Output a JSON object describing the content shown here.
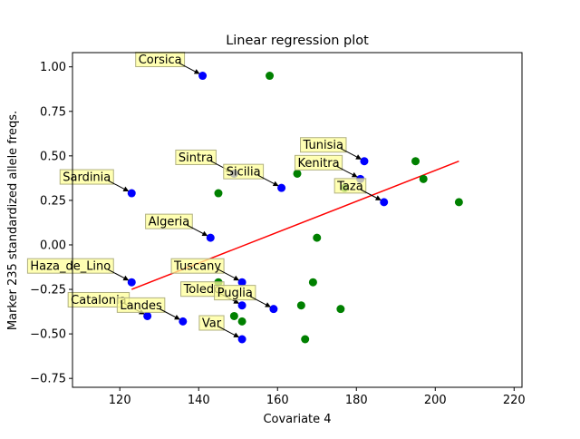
{
  "chart_data": {
    "type": "scatter",
    "title": "Linear regression plot",
    "xlabel": "Covariate 4",
    "ylabel": "Marker 235 standardized allele freqs.",
    "xlim": [
      108,
      222
    ],
    "ylim": [
      -0.8,
      1.08
    ],
    "xticks": [
      120,
      140,
      160,
      180,
      200,
      220
    ],
    "yticks": [
      -0.75,
      -0.5,
      -0.25,
      0.0,
      0.25,
      0.5,
      0.75,
      1.0
    ],
    "xtick_labels": [
      "120",
      "140",
      "160",
      "180",
      "200",
      "220"
    ],
    "ytick_labels": [
      "−0.75",
      "−0.50",
      "−0.25",
      "0.00",
      "0.25",
      "0.50",
      "0.75",
      "1.00"
    ],
    "grid": false,
    "colors": {
      "blue": "#0000ff",
      "green": "#008000",
      "regression": "#ff0000",
      "annotation_fill": "#ffff99",
      "annotation_edge": "#b0b080"
    },
    "series": [
      {
        "color": "#0000ff",
        "points": [
          {
            "x": 141,
            "y": 0.95,
            "label": "Corsica"
          },
          {
            "x": 149,
            "y": 0.4,
            "label": "Sintra"
          },
          {
            "x": 161,
            "y": 0.32,
            "label": "Sicilia"
          },
          {
            "x": 182,
            "y": 0.47,
            "label": "Tunisia"
          },
          {
            "x": 181,
            "y": 0.37,
            "label": "Kenitra"
          },
          {
            "x": 187,
            "y": 0.24,
            "label": "Taza"
          },
          {
            "x": 123,
            "y": 0.29,
            "label": "Sardinia"
          },
          {
            "x": 143,
            "y": 0.04,
            "label": "Algeria"
          },
          {
            "x": 123,
            "y": -0.21,
            "label": "Haza_de_Lino"
          },
          {
            "x": 151,
            "y": -0.21,
            "label": "Tuscany"
          },
          {
            "x": 151,
            "y": -0.34,
            "label": "Toledo"
          },
          {
            "x": 159,
            "y": -0.36,
            "label": "Puglia"
          },
          {
            "x": 127,
            "y": -0.4,
            "label": "Catalonia"
          },
          {
            "x": 136,
            "y": -0.43,
            "label": "Landes"
          },
          {
            "x": 151,
            "y": -0.53,
            "label": "Var"
          }
        ]
      },
      {
        "color": "#008000",
        "points": [
          {
            "x": 158,
            "y": 0.95
          },
          {
            "x": 165,
            "y": 0.4
          },
          {
            "x": 145,
            "y": 0.29
          },
          {
            "x": 177,
            "y": 0.32
          },
          {
            "x": 195,
            "y": 0.47
          },
          {
            "x": 197,
            "y": 0.37
          },
          {
            "x": 206,
            "y": 0.24
          },
          {
            "x": 170,
            "y": 0.04
          },
          {
            "x": 145,
            "y": -0.21
          },
          {
            "x": 169,
            "y": -0.21
          },
          {
            "x": 166,
            "y": -0.34
          },
          {
            "x": 176,
            "y": -0.36
          },
          {
            "x": 149,
            "y": -0.4
          },
          {
            "x": 151,
            "y": -0.43
          },
          {
            "x": 167,
            "y": -0.53
          }
        ]
      }
    ],
    "regression_line": {
      "x": [
        123,
        206
      ],
      "y": [
        -0.25,
        0.47
      ]
    }
  }
}
